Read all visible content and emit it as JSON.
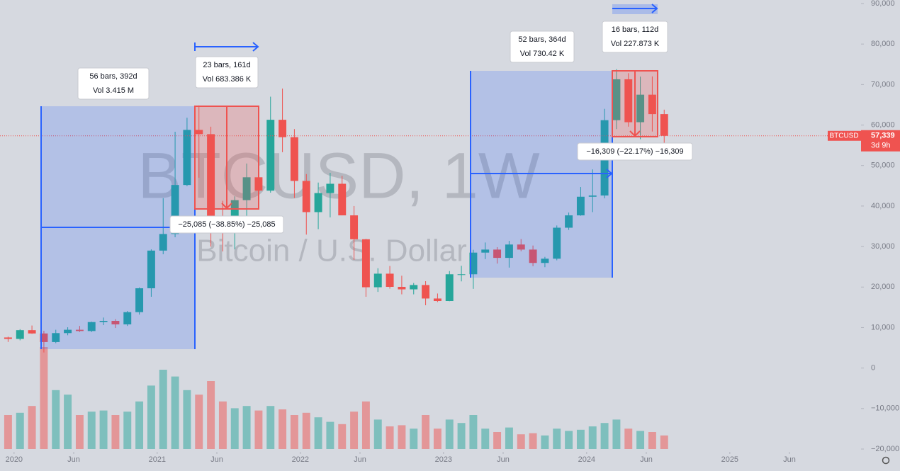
{
  "chart_data": {
    "type": "candlestick",
    "title": "BTCUSD, 1W",
    "subtitle": "Bitcoin / U.S. Dollar",
    "x": [
      "2019-12",
      "2020-01",
      "2020-02",
      "2020-03",
      "2020-04",
      "2020-05",
      "2020-06",
      "2020-07",
      "2020-08",
      "2020-09",
      "2020-10",
      "2020-11",
      "2020-12",
      "2021-01",
      "2021-02",
      "2021-03",
      "2021-04",
      "2021-05",
      "2021-06",
      "2021-07",
      "2021-08",
      "2021-09",
      "2021-10",
      "2021-11",
      "2021-12",
      "2022-01",
      "2022-02",
      "2022-03",
      "2022-04",
      "2022-05",
      "2022-06",
      "2022-07",
      "2022-08",
      "2022-09",
      "2022-10",
      "2022-11",
      "2022-12",
      "2023-01",
      "2023-02",
      "2023-03",
      "2023-04",
      "2023-05",
      "2023-06",
      "2023-07",
      "2023-08",
      "2023-09",
      "2023-10",
      "2023-11",
      "2023-12",
      "2024-01",
      "2024-02",
      "2024-03",
      "2024-04",
      "2024-05",
      "2024-06",
      "2024-07"
    ],
    "series": [
      {
        "name": "BTCUSD",
        "up_color": "#26a69a",
        "down_color": "#ef5350",
        "open": [
          7550,
          7190,
          9350,
          8540,
          6420,
          8630,
          9450,
          9140,
          11350,
          11650,
          10780,
          13800,
          19700,
          29000,
          33100,
          45200,
          58800,
          57750,
          37300,
          35050,
          41460,
          47100,
          43800,
          61300,
          57000,
          46200,
          38500,
          43200,
          45500,
          37700,
          31800,
          19950,
          23300,
          20050,
          19430,
          20500,
          17170,
          16550,
          23150,
          23150,
          28500,
          29250,
          27200,
          30500,
          29250,
          25950,
          27000,
          34650,
          37700,
          42300,
          42600,
          61200,
          71300,
          60700,
          67500,
          62700
        ],
        "high": [
          7750,
          9600,
          10500,
          9200,
          9450,
          10070,
          10400,
          11450,
          12470,
          12070,
          14100,
          19900,
          29300,
          41950,
          58350,
          61800,
          64850,
          59600,
          41300,
          42400,
          50500,
          52900,
          67000,
          69000,
          59000,
          47900,
          45800,
          48200,
          47450,
          40000,
          31900,
          24650,
          25200,
          22800,
          21000,
          21450,
          18400,
          23950,
          25250,
          29200,
          31000,
          29850,
          31400,
          31850,
          30250,
          27450,
          35200,
          38400,
          44700,
          49050,
          64000,
          73800,
          72800,
          71950,
          72000,
          63800
        ],
        "low": [
          6450,
          6850,
          8450,
          3850,
          6150,
          8100,
          8900,
          8900,
          10600,
          9900,
          10400,
          13200,
          17600,
          28100,
          32300,
          44900,
          47000,
          30000,
          28800,
          29300,
          37300,
          39600,
          43300,
          53300,
          42000,
          32950,
          34300,
          37200,
          37700,
          26700,
          17600,
          18800,
          19600,
          18200,
          18200,
          15500,
          16300,
          16500,
          21400,
          19550,
          26900,
          25800,
          24800,
          28850,
          25150,
          24900,
          26600,
          34100,
          37600,
          38500,
          41900,
          59000,
          59600,
          56500,
          58400,
          53500
        ],
        "close": [
          7190,
          9350,
          8540,
          6420,
          8630,
          9450,
          9140,
          11350,
          11650,
          10780,
          13800,
          19700,
          29000,
          33100,
          45200,
          58800,
          57750,
          37300,
          35050,
          41460,
          47100,
          43800,
          61300,
          57000,
          46200,
          38500,
          43200,
          45500,
          37700,
          31800,
          19950,
          23300,
          20050,
          19430,
          20500,
          17170,
          16550,
          23150,
          23150,
          28500,
          29250,
          27200,
          30500,
          29250,
          25950,
          27000,
          34650,
          37700,
          42300,
          42600,
          61200,
          71300,
          60700,
          67500,
          62700,
          57339
        ],
        "volume": [
          300,
          320,
          380,
          900,
          520,
          480,
          300,
          330,
          340,
          300,
          330,
          420,
          560,
          700,
          640,
          520,
          480,
          600,
          420,
          360,
          380,
          340,
          380,
          350,
          300,
          320,
          280,
          240,
          220,
          330,
          420,
          260,
          200,
          210,
          180,
          300,
          180,
          260,
          230,
          300,
          180,
          150,
          190,
          130,
          140,
          120,
          180,
          160,
          170,
          200,
          230,
          260,
          180,
          160,
          150,
          120
        ]
      }
    ],
    "volume_ylim": [
      0,
      1000
    ],
    "xlim": [
      "2019-12",
      "2025-12"
    ],
    "xticks": [
      {
        "value": "2020-01",
        "label": "2020"
      },
      {
        "value": "2020-06",
        "label": "Jun"
      },
      {
        "value": "2021-01",
        "label": "2021"
      },
      {
        "value": "2021-06",
        "label": "Jun"
      },
      {
        "value": "2022-01",
        "label": "2022"
      },
      {
        "value": "2022-06",
        "label": "Jun"
      },
      {
        "value": "2023-01",
        "label": "2023"
      },
      {
        "value": "2023-06",
        "label": "Jun"
      },
      {
        "value": "2024-01",
        "label": "2024"
      },
      {
        "value": "2024-06",
        "label": "Jun"
      },
      {
        "value": "2025-01",
        "label": "2025"
      },
      {
        "value": "2025-06",
        "label": "Jun"
      }
    ],
    "ylim": [
      -20000,
      90000
    ],
    "yticks": [
      {
        "value": 90000,
        "label": "90,000"
      },
      {
        "value": 80000,
        "label": "80,000"
      },
      {
        "value": 70000,
        "label": "70,000"
      },
      {
        "value": 60000,
        "label": "60,000"
      },
      {
        "value": 50000,
        "label": "50,000"
      },
      {
        "value": 40000,
        "label": "40,000"
      },
      {
        "value": 30000,
        "label": "30,000"
      },
      {
        "value": 20000,
        "label": "20,000"
      },
      {
        "value": 10000,
        "label": "10,000"
      },
      0,
      {
        "value": -10000,
        "label": "−10,000"
      },
      {
        "value": -20000,
        "label": "−20,000"
      }
    ],
    "last_price": {
      "value": 57339,
      "label": "57,339"
    },
    "countdown": "3d 9h",
    "annotations": [
      "56 bars, 392d",
      "Vol 3.415 M",
      "23 bars, 161d",
      "Vol 683.386 K",
      "52 bars, 364d",
      "Vol 730.42 K",
      "16 bars, 112d",
      "Vol 227.873 K",
      "−25,085 (−38.85%) −25,085",
      "−16,309 (−22.17%) −16,309"
    ]
  }
}
